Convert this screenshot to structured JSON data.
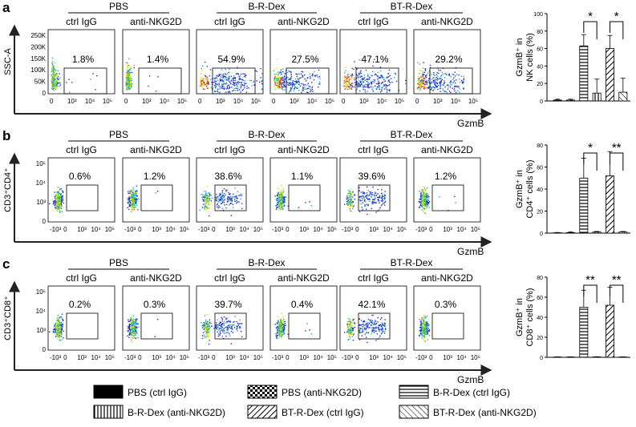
{
  "panels": [
    {
      "letter": "a",
      "ylabel": "SSC-A",
      "xlabel": "GzmB",
      "groups": [
        "PBS",
        "B-R-Dex",
        "BT-R-Dex"
      ],
      "sub": [
        "ctrl IgG",
        "anti-NKG2D"
      ],
      "yticks": [
        "250K",
        "200K",
        "150K",
        "100K",
        "50K",
        "0"
      ],
      "xticks": [
        "0",
        "10³",
        "10⁴",
        "10⁵"
      ],
      "percents": [
        "1.8%",
        "1.4%",
        "54.9%",
        "27.5%",
        "47.1%",
        "29.2%"
      ]
    },
    {
      "letter": "b",
      "ylabel": "CD3⁺CD4⁺",
      "xlabel": "GzmB",
      "groups": [
        "PBS",
        "B-R-Dex",
        "BT-R-Dex"
      ],
      "sub": [
        "ctrl IgG",
        "anti-NKG2D"
      ],
      "yticks": [
        "10⁵",
        "10⁴",
        "10³",
        "0"
      ],
      "xticks": [
        "-10³",
        "0",
        "10³",
        "10⁴",
        "10⁵"
      ],
      "percents": [
        "0.6%",
        "1.2%",
        "38.6%",
        "1.1%",
        "39.6%",
        "1.2%"
      ]
    },
    {
      "letter": "c",
      "ylabel": "CD3⁺CD8⁺",
      "xlabel": "GzmB",
      "groups": [
        "PBS",
        "B-R-Dex",
        "BT-R-Dex"
      ],
      "sub": [
        "ctrl IgG",
        "anti-NKG2D"
      ],
      "yticks": [
        "10⁵",
        "10⁴",
        "10³",
        "0"
      ],
      "xticks": [
        "-10³",
        "0",
        "10³",
        "10⁴",
        "10⁵"
      ],
      "percents": [
        "0.2%",
        "0.3%",
        "39.7%",
        "0.4%",
        "42.1%",
        "0.3%"
      ]
    }
  ],
  "chart_data": [
    {
      "type": "bar",
      "title": "",
      "ylabel": "GzmB⁺ in NK cells (%)",
      "ylim": [
        0,
        100
      ],
      "yticks": [
        0,
        20,
        40,
        60,
        80,
        100
      ],
      "categories": [
        "PBS (ctrl IgG)",
        "PBS (anti-NKG2D)",
        "B-R-Dex (ctrl IgG)",
        "B-R-Dex (anti-NKG2D)",
        "BT-R-Dex (ctrl IgG)",
        "BT-R-Dex (anti-NKG2D)"
      ],
      "values": [
        1,
        1,
        63,
        9,
        60,
        10
      ],
      "errors": [
        1,
        1,
        13,
        16,
        15,
        16
      ],
      "significance": [
        {
          "between": [
            2,
            3
          ],
          "label": "*"
        },
        {
          "between": [
            4,
            5
          ],
          "label": "*"
        }
      ]
    },
    {
      "type": "bar",
      "title": "",
      "ylabel": "GzmB⁺ in CD4⁺ cells (%)",
      "ylim": [
        0,
        80
      ],
      "yticks": [
        0,
        20,
        40,
        60,
        80
      ],
      "categories": [
        "PBS (ctrl IgG)",
        "PBS (anti-NKG2D)",
        "B-R-Dex (ctrl IgG)",
        "B-R-Dex (anti-NKG2D)",
        "BT-R-Dex (ctrl IgG)",
        "BT-R-Dex (anti-NKG2D)"
      ],
      "values": [
        0.3,
        0.5,
        50,
        1,
        52,
        1
      ],
      "errors": [
        0.3,
        0.5,
        18,
        0.5,
        22,
        0.5
      ],
      "significance": [
        {
          "between": [
            2,
            3
          ],
          "label": "*"
        },
        {
          "between": [
            4,
            5
          ],
          "label": "**"
        }
      ]
    },
    {
      "type": "bar",
      "title": "",
      "ylabel": "GzmB⁺ in CD8⁺ cells (%)",
      "ylim": [
        0,
        80
      ],
      "yticks": [
        0,
        20,
        40,
        60,
        80
      ],
      "categories": [
        "PBS (ctrl IgG)",
        "PBS (anti-NKG2D)",
        "B-R-Dex (ctrl IgG)",
        "B-R-Dex (anti-NKG2D)",
        "BT-R-Dex (ctrl IgG)",
        "BT-R-Dex (anti-NKG2D)"
      ],
      "values": [
        0.3,
        0.3,
        50,
        0.4,
        52,
        0.3
      ],
      "errors": [
        0.2,
        0.2,
        17,
        0.2,
        18,
        0.2
      ],
      "significance": [
        {
          "between": [
            2,
            3
          ],
          "label": "**"
        },
        {
          "between": [
            4,
            5
          ],
          "label": "**"
        }
      ]
    }
  ],
  "legend": [
    {
      "label": "PBS (ctrl IgG)",
      "pattern": "solid"
    },
    {
      "label": "PBS (anti-NKG2D)",
      "pattern": "checker"
    },
    {
      "label": "B-R-Dex  (ctrl IgG)",
      "pattern": "hlines"
    },
    {
      "label": "B-R-Dex (anti-NKG2D)",
      "pattern": "vlines"
    },
    {
      "label": "BT-R-Dex (ctrl IgG)",
      "pattern": "diag"
    },
    {
      "label": "BT-R-Dex (anti-NKG2D)",
      "pattern": "antidiag"
    }
  ]
}
